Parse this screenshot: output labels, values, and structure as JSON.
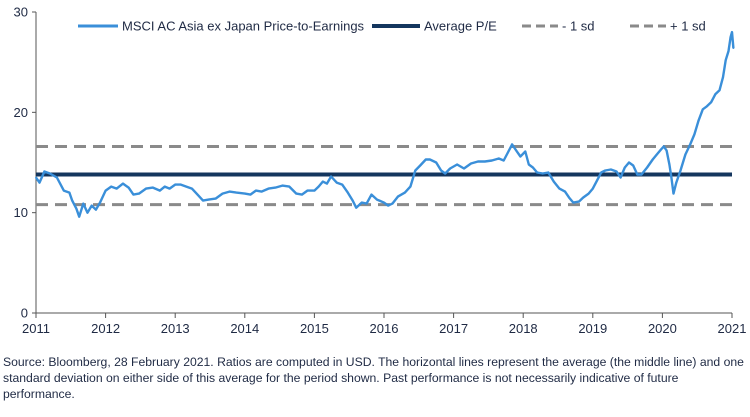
{
  "chart_data": {
    "type": "line",
    "xlim": [
      2011,
      2021
    ],
    "ylim": [
      0,
      30
    ],
    "x_ticks": [
      "2011",
      "2012",
      "2013",
      "2014",
      "2015",
      "2016",
      "2017",
      "2018",
      "2019",
      "2020",
      "2021"
    ],
    "y_ticks": [
      "0",
      "10",
      "20",
      "30"
    ],
    "grid": false,
    "legend_position": "top",
    "series": [
      {
        "name": "MSCI AC Asia ex Japan Price-to-Earnings",
        "color": "#3a8fd9",
        "points": [
          [
            2011.0,
            13.5
          ],
          [
            2011.05,
            13.0
          ],
          [
            2011.12,
            14.1
          ],
          [
            2011.2,
            13.9
          ],
          [
            2011.3,
            13.5
          ],
          [
            2011.4,
            12.2
          ],
          [
            2011.48,
            12.0
          ],
          [
            2011.52,
            11.2
          ],
          [
            2011.58,
            10.4
          ],
          [
            2011.62,
            9.6
          ],
          [
            2011.68,
            10.9
          ],
          [
            2011.74,
            10.0
          ],
          [
            2011.8,
            10.7
          ],
          [
            2011.86,
            10.3
          ],
          [
            2011.92,
            11.0
          ],
          [
            2012.0,
            12.2
          ],
          [
            2012.08,
            12.6
          ],
          [
            2012.16,
            12.4
          ],
          [
            2012.25,
            12.9
          ],
          [
            2012.33,
            12.5
          ],
          [
            2012.4,
            11.8
          ],
          [
            2012.48,
            11.9
          ],
          [
            2012.58,
            12.4
          ],
          [
            2012.68,
            12.5
          ],
          [
            2012.78,
            12.2
          ],
          [
            2012.85,
            12.6
          ],
          [
            2012.92,
            12.4
          ],
          [
            2013.0,
            12.8
          ],
          [
            2013.08,
            12.8
          ],
          [
            2013.16,
            12.6
          ],
          [
            2013.24,
            12.4
          ],
          [
            2013.32,
            11.8
          ],
          [
            2013.4,
            11.2
          ],
          [
            2013.48,
            11.3
          ],
          [
            2013.58,
            11.4
          ],
          [
            2013.68,
            11.9
          ],
          [
            2013.78,
            12.1
          ],
          [
            2013.88,
            12.0
          ],
          [
            2014.0,
            11.9
          ],
          [
            2014.08,
            11.8
          ],
          [
            2014.16,
            12.2
          ],
          [
            2014.24,
            12.1
          ],
          [
            2014.34,
            12.4
          ],
          [
            2014.44,
            12.5
          ],
          [
            2014.54,
            12.7
          ],
          [
            2014.64,
            12.6
          ],
          [
            2014.74,
            11.9
          ],
          [
            2014.82,
            11.8
          ],
          [
            2014.9,
            12.2
          ],
          [
            2015.0,
            12.2
          ],
          [
            2015.06,
            12.6
          ],
          [
            2015.12,
            13.1
          ],
          [
            2015.18,
            12.9
          ],
          [
            2015.24,
            13.6
          ],
          [
            2015.32,
            13.0
          ],
          [
            2015.4,
            12.8
          ],
          [
            2015.48,
            12.0
          ],
          [
            2015.55,
            11.2
          ],
          [
            2015.6,
            10.5
          ],
          [
            2015.68,
            11.0
          ],
          [
            2015.75,
            10.9
          ],
          [
            2015.82,
            11.8
          ],
          [
            2015.9,
            11.3
          ],
          [
            2016.0,
            11.0
          ],
          [
            2016.06,
            10.7
          ],
          [
            2016.12,
            10.9
          ],
          [
            2016.2,
            11.6
          ],
          [
            2016.3,
            12.0
          ],
          [
            2016.38,
            12.6
          ],
          [
            2016.45,
            14.2
          ],
          [
            2016.52,
            14.7
          ],
          [
            2016.6,
            15.3
          ],
          [
            2016.66,
            15.3
          ],
          [
            2016.75,
            15.0
          ],
          [
            2016.82,
            14.2
          ],
          [
            2016.88,
            13.9
          ],
          [
            2016.95,
            14.4
          ],
          [
            2017.05,
            14.8
          ],
          [
            2017.15,
            14.4
          ],
          [
            2017.25,
            14.9
          ],
          [
            2017.35,
            15.1
          ],
          [
            2017.45,
            15.1
          ],
          [
            2017.55,
            15.2
          ],
          [
            2017.65,
            15.4
          ],
          [
            2017.72,
            15.2
          ],
          [
            2017.78,
            16.0
          ],
          [
            2017.84,
            16.8
          ],
          [
            2017.9,
            16.2
          ],
          [
            2017.96,
            15.6
          ],
          [
            2018.03,
            16.1
          ],
          [
            2018.08,
            14.8
          ],
          [
            2018.14,
            14.5
          ],
          [
            2018.2,
            14.0
          ],
          [
            2018.28,
            13.9
          ],
          [
            2018.36,
            14.0
          ],
          [
            2018.44,
            13.1
          ],
          [
            2018.52,
            12.4
          ],
          [
            2018.6,
            12.1
          ],
          [
            2018.66,
            11.5
          ],
          [
            2018.72,
            11.0
          ],
          [
            2018.8,
            11.1
          ],
          [
            2018.86,
            11.5
          ],
          [
            2018.94,
            11.9
          ],
          [
            2019.0,
            12.4
          ],
          [
            2019.06,
            13.2
          ],
          [
            2019.12,
            14.0
          ],
          [
            2019.18,
            14.2
          ],
          [
            2019.26,
            14.3
          ],
          [
            2019.34,
            14.1
          ],
          [
            2019.4,
            13.5
          ],
          [
            2019.46,
            14.5
          ],
          [
            2019.52,
            15.0
          ],
          [
            2019.58,
            14.7
          ],
          [
            2019.64,
            13.8
          ],
          [
            2019.7,
            13.8
          ],
          [
            2019.78,
            14.5
          ],
          [
            2019.86,
            15.3
          ],
          [
            2019.92,
            15.8
          ],
          [
            2019.98,
            16.3
          ],
          [
            2020.02,
            16.6
          ],
          [
            2020.06,
            16.2
          ],
          [
            2020.1,
            14.8
          ],
          [
            2020.13,
            13.5
          ],
          [
            2020.16,
            11.9
          ],
          [
            2020.2,
            13.0
          ],
          [
            2020.26,
            14.2
          ],
          [
            2020.33,
            15.8
          ],
          [
            2020.4,
            16.8
          ],
          [
            2020.46,
            17.8
          ],
          [
            2020.52,
            19.2
          ],
          [
            2020.58,
            20.3
          ],
          [
            2020.64,
            20.6
          ],
          [
            2020.7,
            21.0
          ],
          [
            2020.76,
            21.8
          ],
          [
            2020.82,
            22.2
          ],
          [
            2020.87,
            23.5
          ],
          [
            2020.91,
            25.2
          ],
          [
            2020.95,
            26.1
          ],
          [
            2020.98,
            27.5
          ],
          [
            2021.0,
            28.0
          ],
          [
            2021.02,
            26.4
          ]
        ]
      },
      {
        "name": "Average P/E",
        "color": "#14365e",
        "y": 13.8
      },
      {
        "name": "- 1 sd",
        "color": "#8a8a8a",
        "y": 10.8
      },
      {
        "name": "+ 1 sd",
        "color": "#8a8a8a",
        "y": 16.6
      }
    ]
  },
  "legend": [
    {
      "label": "MSCI AC Asia ex Japan Price-to-Earnings",
      "style": "solid",
      "color": "#3a8fd9"
    },
    {
      "label": "Average P/E",
      "style": "solid",
      "color": "#14365e"
    },
    {
      "label": "- 1 sd",
      "style": "dashed",
      "color": "#8a8a8a"
    },
    {
      "label": "+ 1 sd",
      "style": "dashed",
      "color": "#8a8a8a"
    }
  ],
  "source_note": "Source: Bloomberg, 28 February 2021. Ratios are computed in USD. The horizontal lines represent the average (the middle line) and one standard deviation on either side of this average for the period shown. Past performance is not necessarily indicative of future performance."
}
